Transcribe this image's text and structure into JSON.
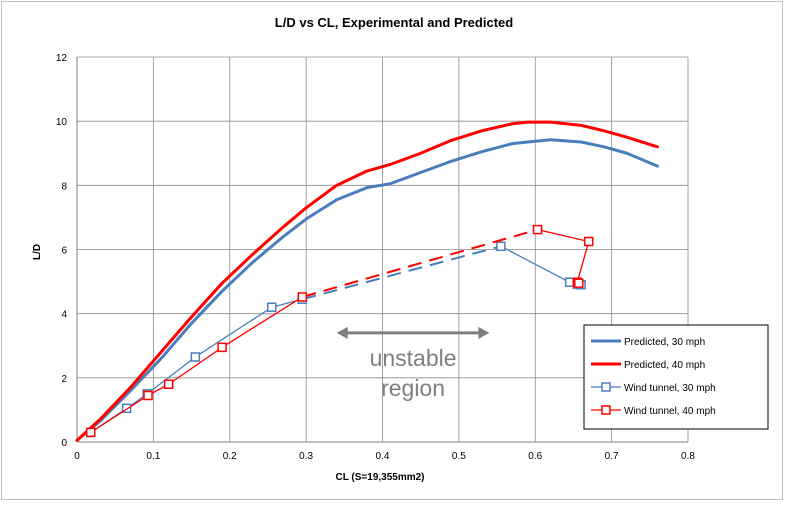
{
  "chart_data": {
    "type": "line",
    "title": "L/D vs CL, Experimental and Predicted",
    "xlabel": "CL (S=19,355mm2)",
    "ylabel": "L/D",
    "xlim": [
      0,
      0.8
    ],
    "ylim": [
      0,
      12
    ],
    "xticks": [
      "0",
      "0.1",
      "0.2",
      "0.3",
      "0.4",
      "0.5",
      "0.6",
      "0.7",
      "0.8"
    ],
    "yticks": [
      "0",
      "2",
      "4",
      "6",
      "8",
      "10",
      "12"
    ],
    "grid": true,
    "legend_position": "bottom-right",
    "annotation": {
      "lines": [
        "unstable",
        "region"
      ],
      "arrow_x_range": [
        0.34,
        0.54
      ],
      "arrow_y": 3.4
    },
    "series": [
      {
        "name": "Predicted, 30 mph",
        "color": "#4a7ebb",
        "marker": "none",
        "x": [
          0,
          0.03,
          0.07,
          0.11,
          0.15,
          0.19,
          0.23,
          0.27,
          0.3,
          0.34,
          0.38,
          0.41,
          0.45,
          0.49,
          0.53,
          0.57,
          0.59,
          0.62,
          0.66,
          0.69,
          0.72,
          0.76
        ],
        "y": [
          0.05,
          0.65,
          1.6,
          2.6,
          3.7,
          4.7,
          5.6,
          6.4,
          6.95,
          7.55,
          7.93,
          8.05,
          8.4,
          8.75,
          9.05,
          9.3,
          9.35,
          9.42,
          9.35,
          9.2,
          9.0,
          8.6
        ]
      },
      {
        "name": "Predicted, 40 mph",
        "color": "#ff0000",
        "marker": "none",
        "x": [
          0,
          0.03,
          0.07,
          0.11,
          0.15,
          0.19,
          0.23,
          0.27,
          0.3,
          0.34,
          0.38,
          0.41,
          0.45,
          0.49,
          0.53,
          0.57,
          0.59,
          0.62,
          0.66,
          0.69,
          0.72,
          0.76
        ],
        "y": [
          0.05,
          0.7,
          1.7,
          2.8,
          3.9,
          4.95,
          5.85,
          6.7,
          7.3,
          8.0,
          8.45,
          8.65,
          9.0,
          9.4,
          9.7,
          9.92,
          9.97,
          9.97,
          9.87,
          9.7,
          9.5,
          9.2
        ]
      },
      {
        "name": "Wind tunnel, 30 mph",
        "color": "#4a7ebb",
        "marker": "square",
        "x": [
          0.018,
          0.065,
          0.092,
          0.155,
          0.255,
          0.295,
          0.555,
          0.645,
          0.655,
          0.66
        ],
        "y": [
          0.3,
          1.05,
          1.5,
          2.65,
          4.2,
          4.45,
          6.1,
          4.98,
          4.92,
          4.9
        ],
        "dashed_segment_after_x": 0.295
      },
      {
        "name": "Wind tunnel, 40 mph",
        "color": "#ff0000",
        "marker": "square",
        "x": [
          0.018,
          0.093,
          0.12,
          0.19,
          0.295,
          0.603,
          0.67,
          0.655,
          0.657
        ],
        "y": [
          0.3,
          1.45,
          1.8,
          2.95,
          4.52,
          6.62,
          6.25,
          4.98,
          4.95
        ],
        "dashed_segment_after_x": 0.295
      }
    ]
  }
}
